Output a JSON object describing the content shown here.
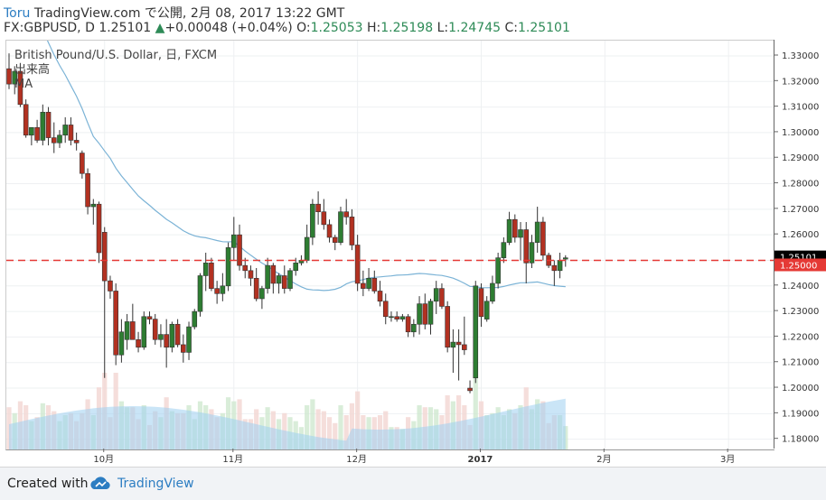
{
  "header": {
    "user": "Toru",
    "published": "TradingView.com で公開, 2月 08, 2017 13:22 GMT",
    "symbol": "FX:GBPUSD, D",
    "last": "1.25101",
    "change_arrow": "▲",
    "change": "+0.00048 (+0.04%)",
    "o_label": "O:",
    "o": "1.25053",
    "h_label": "H:",
    "h": "1.25198",
    "l_label": "L:",
    "l": "1.24745",
    "c_label": "C:",
    "c": "1.25101"
  },
  "legend": {
    "line1": "British Pound/U.S. Dollar, 日, FXCM",
    "line2": "出来高",
    "line3": "MA"
  },
  "footer": {
    "created_with": "Created with",
    "brand": "TradingView",
    "logo_icon": "tradingview-cloud-icon"
  },
  "colors": {
    "up": "#2e7d32",
    "down": "#b23121",
    "ma": "#7bb3d6",
    "level": "#e53935",
    "price_badge": "#000000",
    "level_badge": "#e53935"
  },
  "chart_data": {
    "type": "candlestick",
    "symbol": "GBPUSD",
    "timeframe": "D",
    "ylim": [
      1.176,
      1.336
    ],
    "y_ticks": [
      1.18,
      1.19,
      1.2,
      1.21,
      1.22,
      1.23,
      1.24,
      1.25,
      1.26,
      1.27,
      1.28,
      1.29,
      1.3,
      1.31,
      1.32,
      1.33
    ],
    "y_tick_labels": [
      "1.18000",
      "1.19000",
      "1.20000",
      "1.21000",
      "1.22000",
      "1.23000",
      "1.24000",
      "1.25000",
      "1.26000",
      "1.27000",
      "1.28000",
      "1.29000",
      "1.30000",
      "1.31000",
      "1.32000",
      "1.33000"
    ],
    "x_ticks": [
      "10月",
      "11月",
      "12月",
      "2017",
      "2月",
      "3月"
    ],
    "x_tick_index": [
      17,
      40,
      62,
      84,
      106,
      128
    ],
    "horizontal_line": 1.25,
    "horizontal_line_label": "1.25000",
    "last_price_label": "1.25101",
    "last_price": 1.25101,
    "candles": [
      [
        1.325,
        1.331,
        1.317,
        1.319
      ],
      [
        1.319,
        1.326,
        1.315,
        1.324
      ],
      [
        1.324,
        1.327,
        1.31,
        1.311
      ],
      [
        1.311,
        1.313,
        1.298,
        1.299
      ],
      [
        1.299,
        1.302,
        1.295,
        1.302
      ],
      [
        1.302,
        1.305,
        1.296,
        1.297
      ],
      [
        1.297,
        1.311,
        1.295,
        1.308
      ],
      [
        1.308,
        1.31,
        1.295,
        1.298
      ],
      [
        1.298,
        1.304,
        1.292,
        1.296
      ],
      [
        1.296,
        1.301,
        1.294,
        1.299
      ],
      [
        1.299,
        1.306,
        1.296,
        1.303
      ],
      [
        1.303,
        1.306,
        1.295,
        1.297
      ],
      [
        1.297,
        1.3,
        1.293,
        1.296
      ],
      [
        1.292,
        1.293,
        1.282,
        1.284
      ],
      [
        1.284,
        1.286,
        1.268,
        1.271
      ],
      [
        1.271,
        1.274,
        1.264,
        1.272
      ],
      [
        1.272,
        1.273,
        1.249,
        1.253
      ],
      [
        1.261,
        1.263,
        1.204,
        1.242
      ],
      [
        1.242,
        1.244,
        1.235,
        1.238
      ],
      [
        1.238,
        1.241,
        1.209,
        1.213
      ],
      [
        1.213,
        1.227,
        1.21,
        1.222
      ],
      [
        1.219,
        1.229,
        1.215,
        1.226
      ],
      [
        1.226,
        1.233,
        1.219,
        1.219
      ],
      [
        1.219,
        1.222,
        1.214,
        1.216
      ],
      [
        1.216,
        1.23,
        1.215,
        1.228
      ],
      [
        1.228,
        1.23,
        1.225,
        1.227
      ],
      [
        1.227,
        1.229,
        1.217,
        1.219
      ],
      [
        1.219,
        1.225,
        1.216,
        1.221
      ],
      [
        1.221,
        1.227,
        1.208,
        1.216
      ],
      [
        1.216,
        1.226,
        1.214,
        1.225
      ],
      [
        1.225,
        1.227,
        1.216,
        1.217
      ],
      [
        1.217,
        1.221,
        1.21,
        1.214
      ],
      [
        1.214,
        1.226,
        1.211,
        1.224
      ],
      [
        1.224,
        1.231,
        1.223,
        1.23
      ],
      [
        1.23,
        1.245,
        1.228,
        1.244
      ],
      [
        1.244,
        1.253,
        1.238,
        1.249
      ],
      [
        1.249,
        1.251,
        1.238,
        1.239
      ],
      [
        1.239,
        1.242,
        1.233,
        1.237
      ],
      [
        1.237,
        1.245,
        1.234,
        1.24
      ],
      [
        1.24,
        1.257,
        1.238,
        1.255
      ],
      [
        1.255,
        1.267,
        1.25,
        1.26
      ],
      [
        1.26,
        1.264,
        1.246,
        1.248
      ],
      [
        1.248,
        1.251,
        1.243,
        1.246
      ],
      [
        1.246,
        1.248,
        1.24,
        1.243
      ],
      [
        1.243,
        1.247,
        1.234,
        1.235
      ],
      [
        1.235,
        1.24,
        1.231,
        1.239
      ],
      [
        1.239,
        1.251,
        1.237,
        1.248
      ],
      [
        1.248,
        1.249,
        1.237,
        1.241
      ],
      [
        1.241,
        1.245,
        1.237,
        1.244
      ],
      [
        1.244,
        1.248,
        1.237,
        1.239
      ],
      [
        1.239,
        1.247,
        1.238,
        1.246
      ],
      [
        1.246,
        1.251,
        1.244,
        1.249
      ],
      [
        1.249,
        1.252,
        1.248,
        1.25
      ],
      [
        1.25,
        1.264,
        1.249,
        1.259
      ],
      [
        1.259,
        1.274,
        1.256,
        1.272
      ],
      [
        1.272,
        1.277,
        1.264,
        1.269
      ],
      [
        1.269,
        1.274,
        1.262,
        1.264
      ],
      [
        1.264,
        1.266,
        1.257,
        1.259
      ],
      [
        1.259,
        1.26,
        1.254,
        1.257
      ],
      [
        1.257,
        1.271,
        1.256,
        1.269
      ],
      [
        1.269,
        1.274,
        1.264,
        1.267
      ],
      [
        1.267,
        1.27,
        1.254,
        1.256
      ],
      [
        1.256,
        1.26,
        1.238,
        1.241
      ],
      [
        1.241,
        1.246,
        1.236,
        1.239
      ],
      [
        1.239,
        1.247,
        1.238,
        1.243
      ],
      [
        1.243,
        1.246,
        1.237,
        1.238
      ],
      [
        1.238,
        1.242,
        1.232,
        1.234
      ],
      [
        1.234,
        1.237,
        1.225,
        1.228
      ],
      [
        1.228,
        1.23,
        1.226,
        1.228
      ],
      [
        1.228,
        1.23,
        1.226,
        1.227
      ],
      [
        1.227,
        1.229,
        1.226,
        1.228
      ],
      [
        1.228,
        1.229,
        1.22,
        1.222
      ],
      [
        1.222,
        1.227,
        1.22,
        1.225
      ],
      [
        1.225,
        1.236,
        1.221,
        1.233
      ],
      [
        1.233,
        1.237,
        1.223,
        1.225
      ],
      [
        1.225,
        1.235,
        1.221,
        1.234
      ],
      [
        1.234,
        1.242,
        1.229,
        1.239
      ],
      [
        1.239,
        1.241,
        1.231,
        1.232
      ],
      [
        1.232,
        1.234,
        1.214,
        1.216
      ],
      [
        1.216,
        1.223,
        1.206,
        1.218
      ],
      [
        1.218,
        1.223,
        1.203,
        1.217
      ],
      [
        1.217,
        1.228,
        1.213,
        1.215
      ],
      [
        1.2,
        1.203,
        1.198,
        1.199
      ],
      [
        1.204,
        1.242,
        1.202,
        1.24
      ],
      [
        1.239,
        1.241,
        1.224,
        1.228
      ],
      [
        1.227,
        1.236,
        1.226,
        1.234
      ],
      [
        1.234,
        1.244,
        1.233,
        1.241
      ],
      [
        1.241,
        1.253,
        1.239,
        1.251
      ],
      [
        1.251,
        1.259,
        1.249,
        1.257
      ],
      [
        1.257,
        1.269,
        1.256,
        1.266
      ],
      [
        1.266,
        1.268,
        1.257,
        1.259
      ],
      [
        1.259,
        1.265,
        1.25,
        1.262
      ],
      [
        1.262,
        1.265,
        1.241,
        1.249
      ],
      [
        1.249,
        1.26,
        1.247,
        1.257
      ],
      [
        1.257,
        1.271,
        1.253,
        1.265
      ],
      [
        1.265,
        1.267,
        1.25,
        1.252
      ],
      [
        1.252,
        1.253,
        1.247,
        1.248
      ],
      [
        1.248,
        1.25,
        1.24,
        1.246
      ],
      [
        1.246,
        1.253,
        1.243,
        1.25
      ],
      [
        1.2505,
        1.252,
        1.2475,
        1.251
      ]
    ],
    "volume_shown_as_bars": true,
    "ma_shown_as_line": true
  }
}
